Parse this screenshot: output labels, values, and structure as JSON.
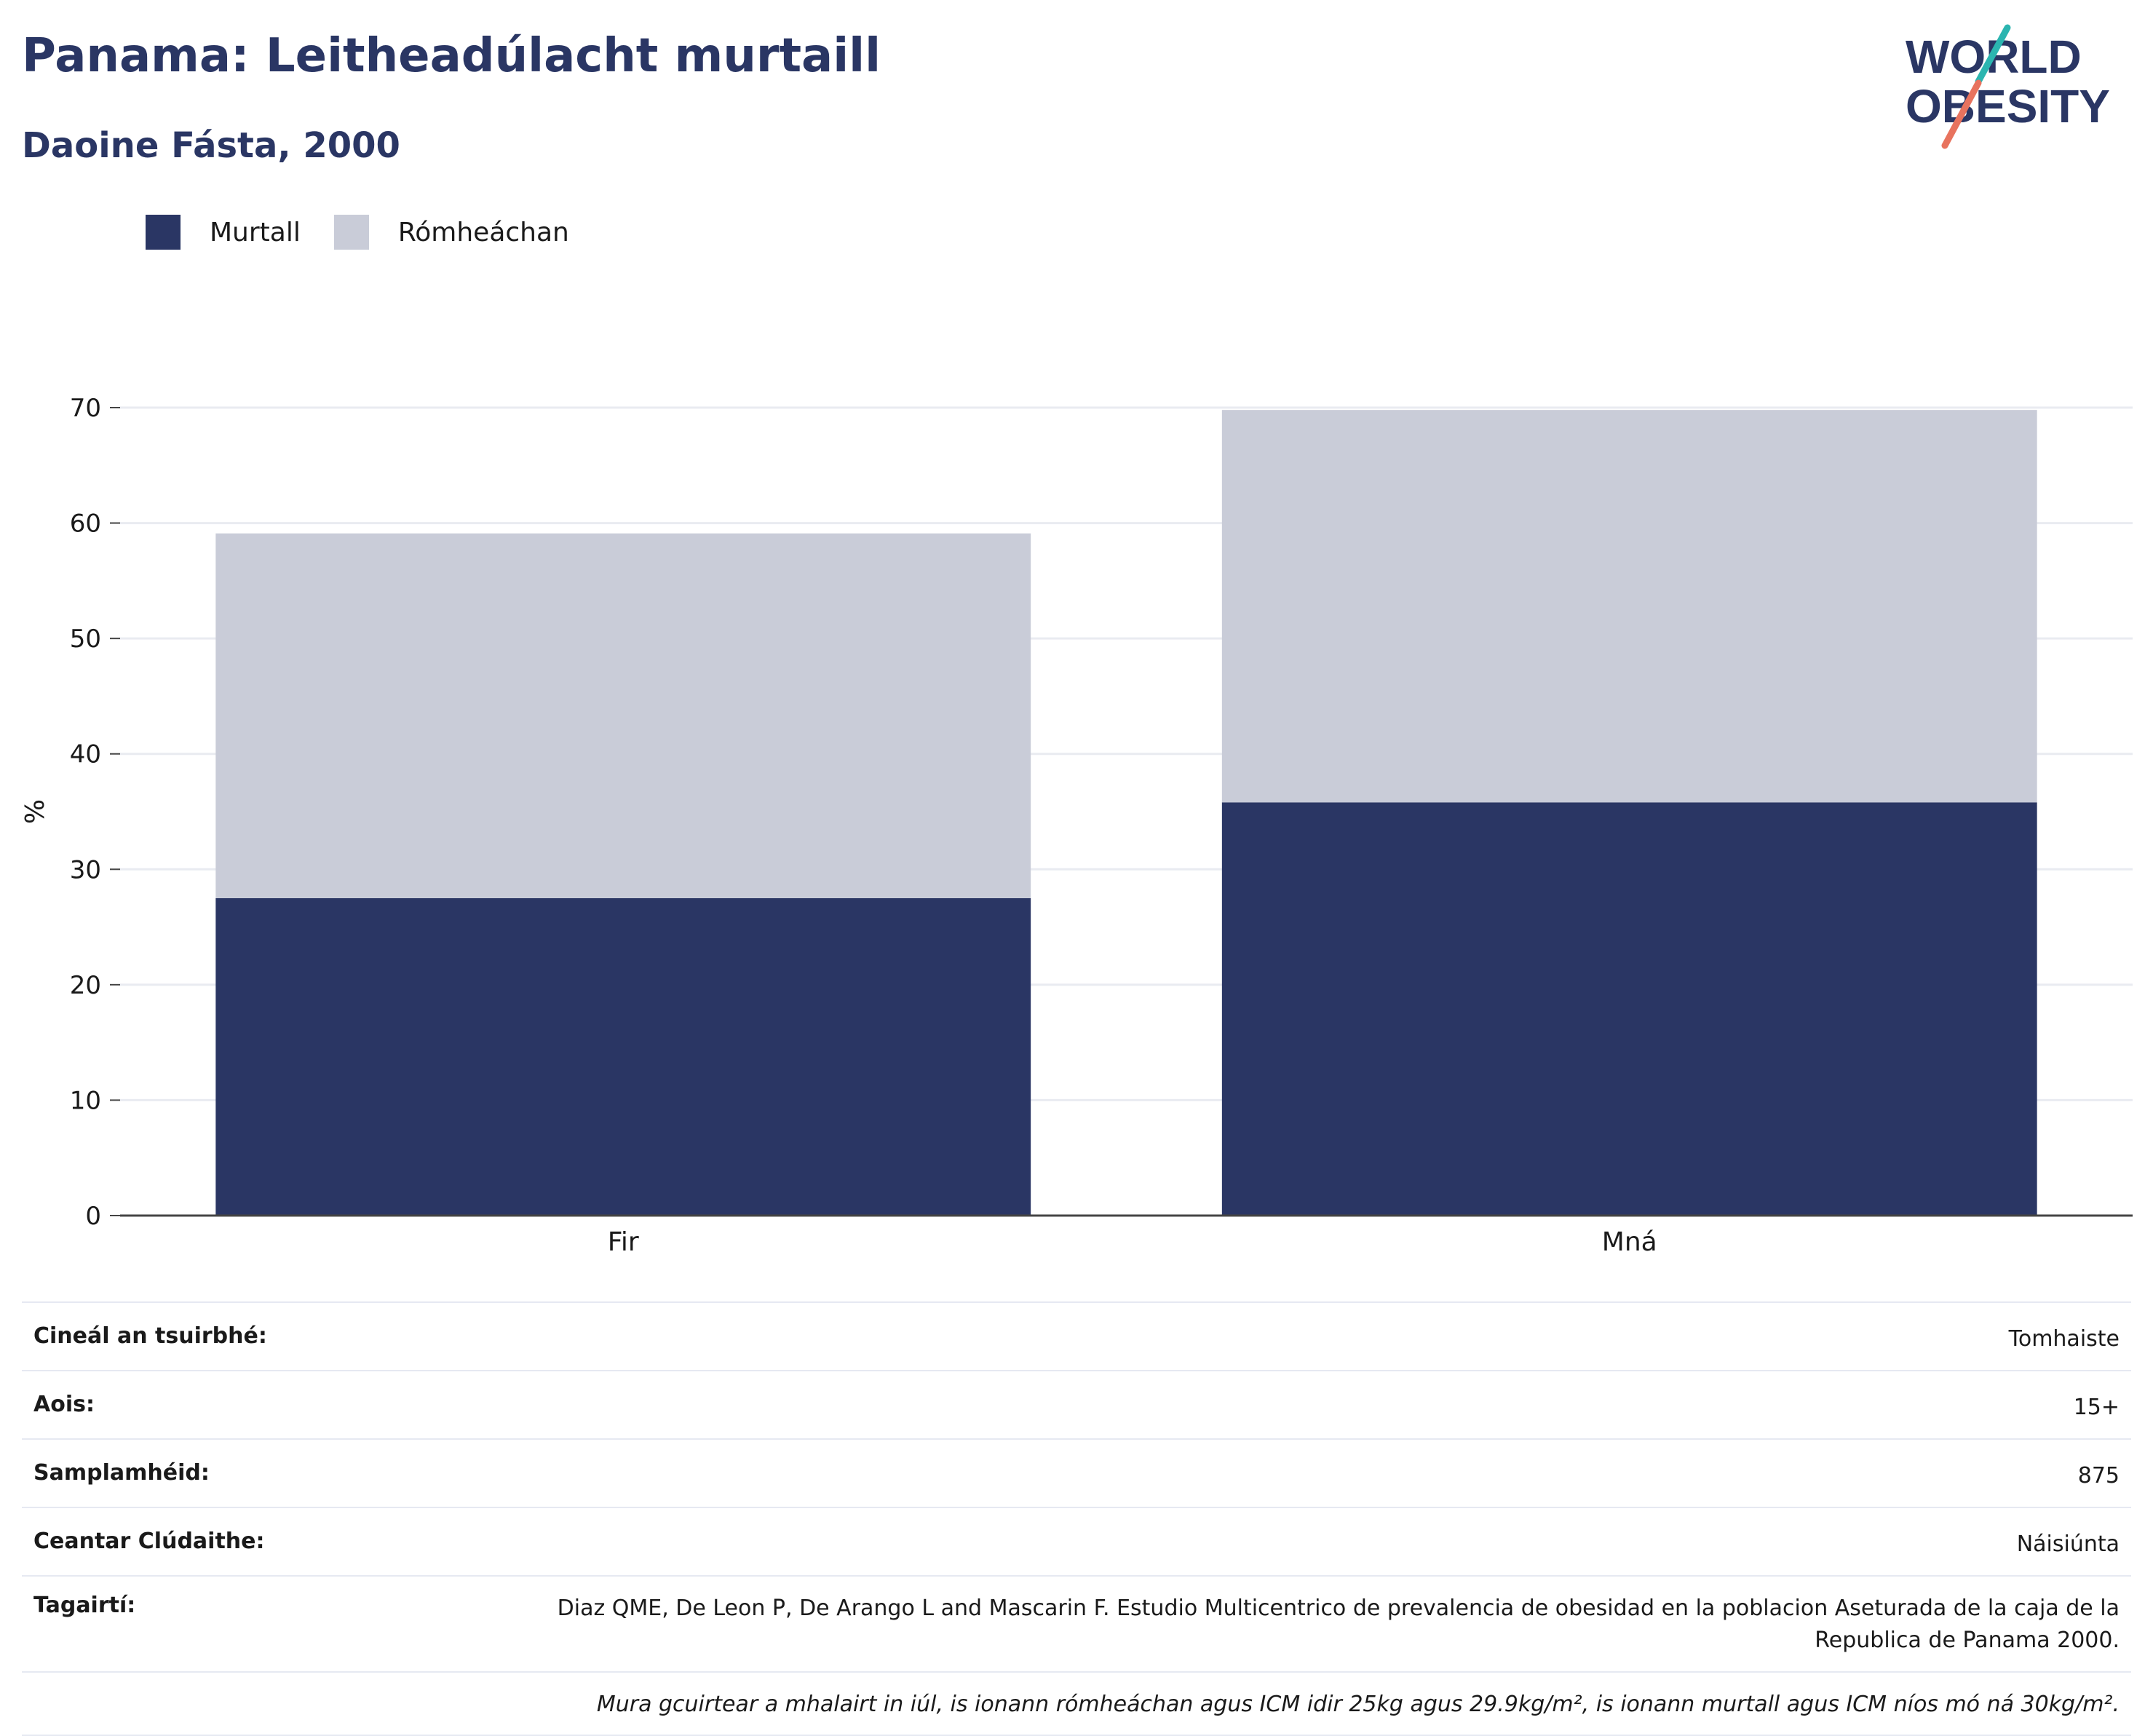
{
  "header": {
    "title": "Panama: Leitheadúlacht murtaill",
    "subtitle": "Daoine Fásta, 2000"
  },
  "logo": {
    "line1": "WORLD",
    "line2": "OBESITY"
  },
  "colors": {
    "obese": "#2a3664",
    "overweight": "#c9ccd8",
    "brand": "#2a3664",
    "logo_teal": "#2bb5b0",
    "logo_coral": "#e8735e"
  },
  "chart_data": {
    "type": "bar",
    "stacked": true,
    "categories": [
      "Fir",
      "Mná"
    ],
    "series": [
      {
        "name": "Murtall",
        "values": [
          27.5,
          35.8
        ],
        "color": "#2a3664"
      },
      {
        "name": "Rómheáchan",
        "values": [
          31.6,
          34.0
        ],
        "color": "#c9ccd8"
      }
    ],
    "ylabel": "%",
    "ylim": [
      0,
      70
    ],
    "yticks": [
      0,
      10,
      20,
      30,
      40,
      50,
      60,
      70
    ],
    "grid": true,
    "legend_position": "top-left"
  },
  "info": {
    "rows": [
      {
        "label": "Cineál an tsuirbhé:",
        "value": "Tomhaiste"
      },
      {
        "label": "Aois:",
        "value": "15+"
      },
      {
        "label": "Samplamhéid:",
        "value": "875"
      },
      {
        "label": "Ceantar Clúdaithe:",
        "value": "Náisiúnta"
      },
      {
        "label": "Tagairtí:",
        "value": "Diaz QME, De Leon P, De Arango L and Mascarin F. Estudio Multicentrico de prevalencia de obesidad en la poblacion Aseturada de la caja de la Republica de Panama 2000."
      }
    ],
    "note": "Mura gcuirtear a mhalairt in iúl, is ionann rómheáchan agus ICM idir 25kg agus 29.9kg/m², is ionann murtall agus ICM níos mó ná 30kg/m²."
  }
}
